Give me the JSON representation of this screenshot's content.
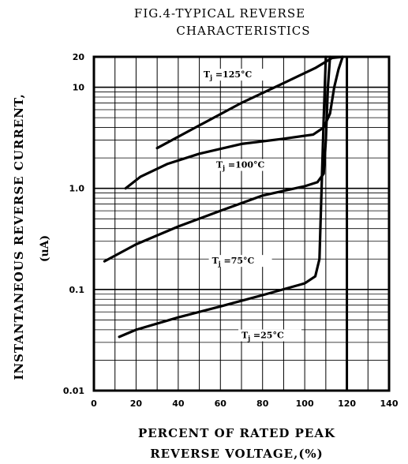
{
  "chart_data": {
    "type": "line",
    "title_line1": "FIG.4-TYPICAL REVERSE",
    "title_line2": "CHARACTERISTICS",
    "xlabel_line1": "PERCENT OF RATED PEAK",
    "xlabel_line2": "REVERSE VOLTAGE,(%)",
    "ylabel": "INSTANTANEOUS REVERSE CURRENT,",
    "yunit": "(uA)",
    "xlim": [
      0,
      140
    ],
    "ylim": [
      0.01,
      20
    ],
    "yscale": "log",
    "grid": true,
    "x_ticks": [
      "0",
      "20",
      "40",
      "60",
      "80",
      "100",
      "120",
      "140"
    ],
    "y_ticks": [
      {
        "value": 20,
        "label": "20"
      },
      {
        "value": 10,
        "label": "10"
      },
      {
        "value": 1,
        "label": "1.0"
      },
      {
        "value": 0.1,
        "label": "0.1"
      },
      {
        "value": 0.01,
        "label": "0.01"
      }
    ],
    "series": [
      {
        "name": "Tj=125°C",
        "label_tj": "T",
        "label_sub": "j",
        "label_rest": "=125°C",
        "label_at": [
          52,
          12.5
        ],
        "points": [
          [
            30,
            2.5
          ],
          [
            50,
            4.2
          ],
          [
            70,
            7.0
          ],
          [
            90,
            11.0
          ],
          [
            105,
            15.5
          ],
          [
            113,
            19.5
          ],
          [
            118,
            20
          ]
        ]
      },
      {
        "name": "Tj=100°C",
        "label_tj": "T",
        "label_sub": "j",
        "label_rest": "=100°C",
        "label_at": [
          58,
          1.6
        ],
        "points": [
          [
            15,
            1.0
          ],
          [
            22,
            1.3
          ],
          [
            35,
            1.75
          ],
          [
            50,
            2.2
          ],
          [
            70,
            2.75
          ],
          [
            90,
            3.1
          ],
          [
            104,
            3.4
          ],
          [
            109,
            4.0
          ],
          [
            112,
            5.5
          ],
          [
            114,
            10
          ],
          [
            116,
            15
          ],
          [
            118,
            20
          ]
        ]
      },
      {
        "name": "Tj=75°C",
        "label_tj": "T",
        "label_sub": "j",
        "label_rest": "=75°C",
        "label_at": [
          56,
          0.18
        ],
        "points": [
          [
            5,
            0.19
          ],
          [
            20,
            0.28
          ],
          [
            40,
            0.42
          ],
          [
            60,
            0.6
          ],
          [
            80,
            0.85
          ],
          [
            100,
            1.05
          ],
          [
            106,
            1.15
          ],
          [
            109,
            1.4
          ],
          [
            110,
            3
          ],
          [
            111,
            10
          ],
          [
            112,
            20
          ]
        ]
      },
      {
        "name": "Tj=25°C",
        "label_tj": "T",
        "label_sub": "j",
        "label_rest": "=25°C",
        "label_at": [
          70,
          0.033
        ],
        "points": [
          [
            12,
            0.034
          ],
          [
            20,
            0.04
          ],
          [
            40,
            0.053
          ],
          [
            60,
            0.068
          ],
          [
            80,
            0.088
          ],
          [
            100,
            0.115
          ],
          [
            105,
            0.135
          ],
          [
            107,
            0.2
          ],
          [
            108,
            1
          ],
          [
            109,
            5
          ],
          [
            110,
            20
          ]
        ]
      }
    ]
  }
}
